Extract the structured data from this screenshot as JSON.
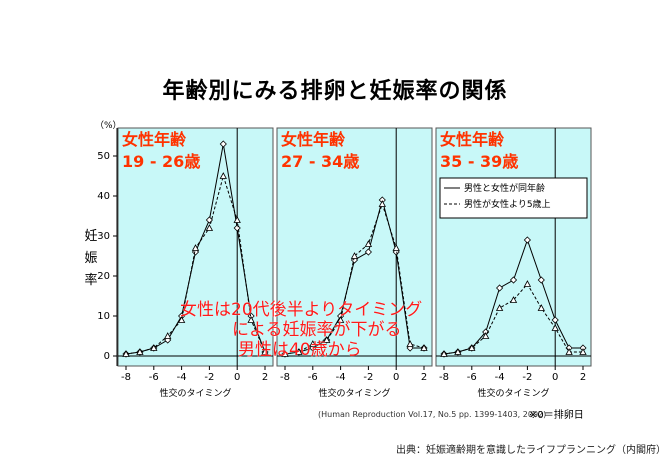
{
  "title": "年齢別にみる排卵と妊娠率の関係",
  "y_unit": "（%）",
  "y_axis_label": "妊\n娠\n率",
  "overlay_text": [
    "女性は20代後半よりタイミング",
    "による妊娠率が下がる",
    "男性は40歳から"
  ],
  "source_note": "(Human Reproduction Vol.17, No.5 pp. 1399-1403, 2002)",
  "zero_note": "※0＝排卵日",
  "footer": "出典：妊娠適齢期を意識したライフプランニング（内閣府）",
  "colors": {
    "panel_bg": "#c8f8f8",
    "panel_text": "#ff3300",
    "line": "#000000"
  },
  "chart_data": [
    {
      "type": "line",
      "panel_label": [
        "女性年齢",
        "19 - 26歳"
      ],
      "x": [
        -8,
        -7,
        -6,
        -5,
        -4,
        -3,
        -2,
        -1,
        0,
        1,
        2
      ],
      "xlim": [
        -8,
        2
      ],
      "ylim": [
        0,
        55
      ],
      "yticks": [
        0,
        10,
        20,
        30,
        40,
        50
      ],
      "xticks": [
        -8,
        -6,
        -4,
        -2,
        0,
        2
      ],
      "xlabel": "性交のタイミング",
      "ylabel": "妊娠率",
      "series": [
        {
          "style": "solid",
          "values": [
            0.5,
            1,
            2,
            4,
            10,
            26,
            34,
            53,
            32,
            10,
            1
          ]
        },
        {
          "style": "dashed",
          "values": [
            0.5,
            1,
            2,
            5,
            9,
            27,
            32,
            45,
            34,
            9,
            1
          ]
        }
      ]
    },
    {
      "type": "line",
      "panel_label": [
        "女性年齢",
        "27 - 34歳"
      ],
      "x": [
        -8,
        -7,
        -6,
        -5,
        -4,
        -3,
        -2,
        -1,
        0,
        1,
        2
      ],
      "xlim": [
        -8,
        2
      ],
      "ylim": [
        0,
        55
      ],
      "xticks": [
        -8,
        -6,
        -4,
        -2,
        0,
        2
      ],
      "xlabel": "性交のタイミング",
      "series": [
        {
          "style": "solid",
          "values": [
            0.5,
            1,
            2,
            4,
            10,
            24,
            26,
            39,
            26,
            2,
            2
          ]
        },
        {
          "style": "dashed",
          "values": [
            0.5,
            1,
            3,
            4,
            9,
            25,
            28,
            38,
            27,
            3,
            2
          ]
        }
      ]
    },
    {
      "type": "line",
      "panel_label": [
        "女性年齢",
        "35 - 39歳"
      ],
      "x": [
        -8,
        -7,
        -6,
        -5,
        -4,
        -3,
        -2,
        -1,
        0,
        1,
        2
      ],
      "xlim": [
        -8,
        2
      ],
      "ylim": [
        0,
        55
      ],
      "xticks": [
        -8,
        -6,
        -4,
        -2,
        0,
        2
      ],
      "xlabel": "性交のタイミング",
      "legend": {
        "placement": "top-right",
        "entries": [
          {
            "style": "solid",
            "label": "男性と女性が同年齢"
          },
          {
            "style": "dashed",
            "label": "男性が女性より5歳上"
          }
        ]
      },
      "series": [
        {
          "style": "solid",
          "values": [
            0.5,
            1,
            2,
            6,
            17,
            19,
            29,
            19,
            9,
            2,
            2
          ]
        },
        {
          "style": "dashed",
          "values": [
            0.5,
            1,
            2,
            5,
            12,
            14,
            18,
            12,
            7,
            1,
            1
          ]
        }
      ]
    }
  ]
}
